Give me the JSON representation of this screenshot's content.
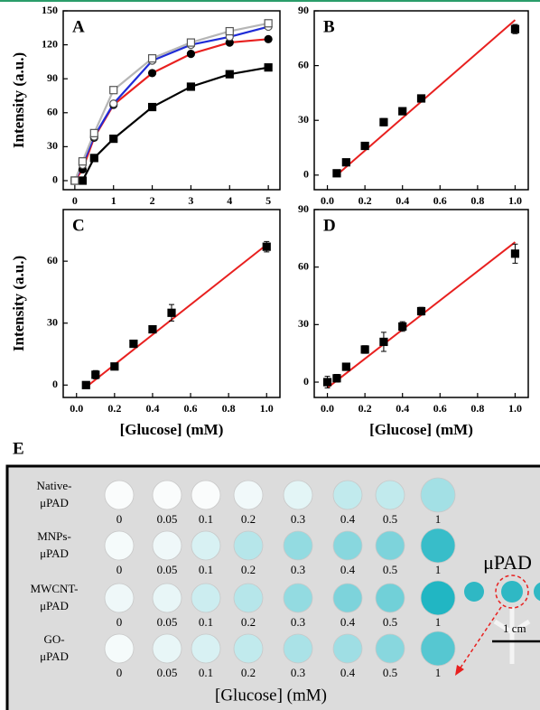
{
  "chart_data": [
    {
      "type": "line",
      "panel": "A",
      "ylabel": "Intensity (a.u.)",
      "x": [
        0,
        0.2,
        0.5,
        1,
        2,
        3,
        4,
        5
      ],
      "xlim": [
        -0.3,
        5.3
      ],
      "xticks": [
        0,
        1,
        2,
        3,
        4,
        5
      ],
      "ylim": [
        -8,
        150
      ],
      "yticks": [
        0,
        30,
        60,
        90,
        120,
        150
      ],
      "series": [
        {
          "color": "#000000",
          "marker": "square",
          "values": [
            0,
            0,
            20,
            37,
            65,
            83,
            94,
            100
          ]
        },
        {
          "color": "#e8201f",
          "marker": "circle",
          "values": [
            0,
            10,
            38,
            67,
            95,
            112,
            122,
            125
          ]
        },
        {
          "color": "#1f2bd6",
          "marker": "open-circle",
          "values": [
            0,
            14,
            39,
            68,
            106,
            120,
            127,
            136
          ]
        },
        {
          "color": "#b5b5b5",
          "marker": "open-square",
          "values": [
            0,
            17,
            42,
            80,
            108,
            122,
            132,
            139
          ]
        }
      ]
    },
    {
      "type": "scatter",
      "panel": "B",
      "x": [
        0.05,
        0.1,
        0.2,
        0.3,
        0.4,
        0.5,
        1.0
      ],
      "values": [
        1,
        7,
        16,
        29,
        35,
        42,
        80
      ],
      "errors": [
        1,
        1,
        1.5,
        2,
        1.5,
        1.5,
        2.5
      ],
      "marker": "square",
      "fit": {
        "color": "#e8201f",
        "x": [
          0.05,
          1.0
        ],
        "y": [
          0,
          85
        ]
      },
      "xlim": [
        -0.07,
        1.07
      ],
      "xticks": [
        {
          "value": 0,
          "label": "0.0"
        },
        {
          "value": 0.2,
          "label": "0.2"
        },
        {
          "value": 0.4,
          "label": "0.4"
        },
        {
          "value": 0.6,
          "label": "0.6"
        },
        {
          "value": 0.8,
          "label": "0.8"
        },
        {
          "value": 1,
          "label": "1.0"
        }
      ],
      "ylim": [
        -8,
        90
      ],
      "yticks": [
        0,
        30,
        60,
        90
      ]
    },
    {
      "type": "scatter",
      "panel": "C",
      "ylabel": "Intensity (a.u.)",
      "xlabel": "[Glucose] (mM)",
      "x": [
        0.05,
        0.1,
        0.2,
        0.3,
        0.4,
        0.5,
        1.0
      ],
      "values": [
        0,
        5,
        9,
        20,
        27,
        35,
        67
      ],
      "errors": [
        1,
        2,
        1,
        1,
        1.5,
        4,
        2.5
      ],
      "marker": "square",
      "fit": {
        "color": "#e8201f",
        "x": [
          0.05,
          1.0
        ],
        "y": [
          -1,
          68
        ]
      },
      "xlim": [
        -0.07,
        1.07
      ],
      "xticks": [
        {
          "value": 0,
          "label": "0.0"
        },
        {
          "value": 0.2,
          "label": "0.2"
        },
        {
          "value": 0.4,
          "label": "0.4"
        },
        {
          "value": 0.6,
          "label": "0.6"
        },
        {
          "value": 0.8,
          "label": "0.8"
        },
        {
          "value": 1,
          "label": "1.0"
        }
      ],
      "ylim": [
        -6,
        85
      ],
      "yticks": [
        0,
        30,
        60
      ]
    },
    {
      "type": "scatter",
      "panel": "D",
      "xlabel": "[Glucose] (mM)",
      "x": [
        0,
        0.05,
        0.1,
        0.2,
        0.3,
        0.4,
        0.5,
        1.0
      ],
      "values": [
        0,
        2,
        8,
        17,
        21,
        29,
        37,
        67
      ],
      "errors": [
        3,
        2,
        1.5,
        2,
        5,
        2.5,
        2,
        5
      ],
      "marker": "square",
      "fit": {
        "color": "#e8201f",
        "x": [
          0,
          1.0
        ],
        "y": [
          -3,
          73
        ]
      },
      "xlim": [
        -0.07,
        1.07
      ],
      "xticks": [
        {
          "value": 0,
          "label": "0.0"
        },
        {
          "value": 0.2,
          "label": "0.2"
        },
        {
          "value": 0.4,
          "label": "0.4"
        },
        {
          "value": 0.6,
          "label": "0.6"
        },
        {
          "value": 0.8,
          "label": "0.8"
        },
        {
          "value": 1,
          "label": "1.0"
        }
      ],
      "ylim": [
        -8,
        90
      ],
      "yticks": [
        0,
        30,
        60,
        90
      ]
    }
  ],
  "panel_e": {
    "label": "E",
    "rows": [
      [
        "Native-",
        "μPAD"
      ],
      [
        "MNPs-",
        "μPAD"
      ],
      [
        "MWCNT-",
        "μPAD"
      ],
      [
        "GO-",
        "μPAD"
      ]
    ],
    "concentrations": [
      "0",
      "0.05",
      "0.1",
      "0.2",
      "0.3",
      "0.4",
      "0.5",
      "1"
    ],
    "xlabel": "[Glucose] (mM)",
    "device_label": "μPAD",
    "scale_label": "1 cm"
  }
}
